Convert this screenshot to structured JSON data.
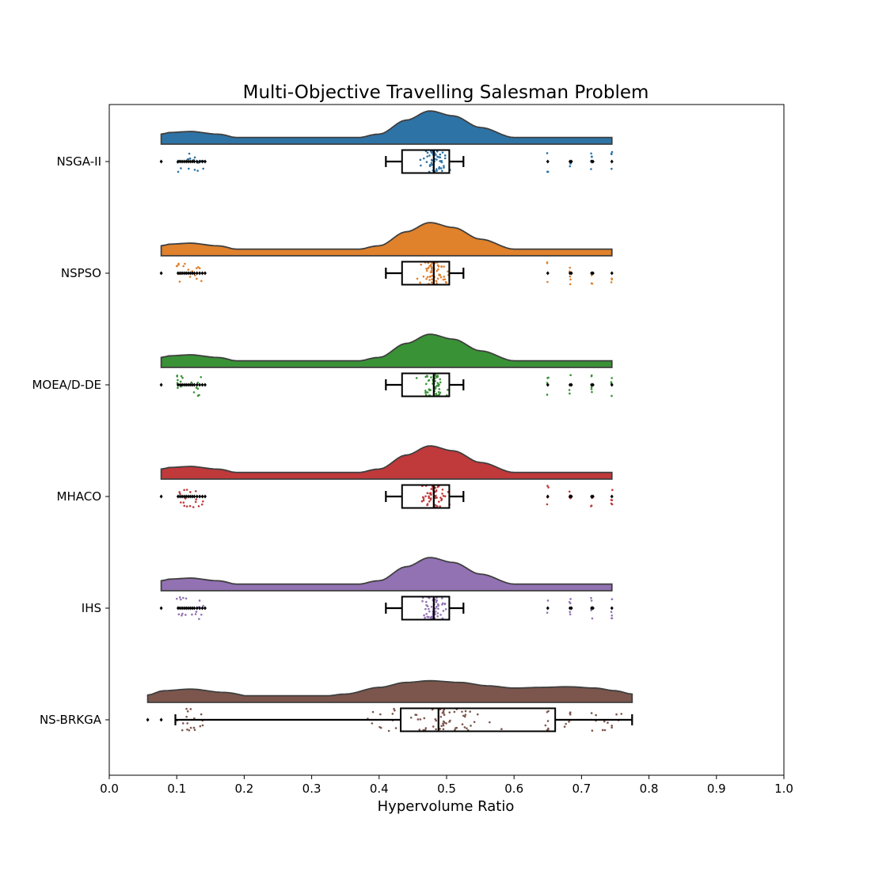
{
  "chart_data": {
    "type": "raincloud",
    "title": "Multi-Objective Travelling Salesman Problem",
    "xlabel": "Hypervolume Ratio",
    "ylabel": "",
    "xlim": [
      0.0,
      1.0
    ],
    "xticks": [
      "0.0",
      "0.1",
      "0.2",
      "0.3",
      "0.4",
      "0.5",
      "0.6",
      "0.7",
      "0.8",
      "0.9",
      "1.0"
    ],
    "grid": false,
    "series": [
      {
        "name": "NSGA-II",
        "color": "#2e73a6",
        "min": 0.077,
        "max": 0.745,
        "density": [
          [
            0.077,
            0.3
          ],
          [
            0.09,
            0.35
          ],
          [
            0.12,
            0.38
          ],
          [
            0.16,
            0.3
          ],
          [
            0.2,
            0.15
          ],
          [
            0.25,
            0.03
          ],
          [
            0.27,
            0.02
          ],
          [
            0.3,
            0.03
          ],
          [
            0.35,
            0.1
          ],
          [
            0.4,
            0.3
          ],
          [
            0.44,
            0.72
          ],
          [
            0.475,
            1.0
          ],
          [
            0.51,
            0.85
          ],
          [
            0.55,
            0.5
          ],
          [
            0.6,
            0.2
          ],
          [
            0.65,
            0.1
          ],
          [
            0.7,
            0.14
          ],
          [
            0.73,
            0.14
          ],
          [
            0.745,
            0.12
          ]
        ],
        "box": {
          "whisker_low": 0.41,
          "q1": 0.434,
          "median": 0.481,
          "q3": 0.504,
          "whisker_high": 0.525
        },
        "outliers": [
          0.077,
          0.102,
          0.105,
          0.108,
          0.111,
          0.114,
          0.117,
          0.12,
          0.123,
          0.126,
          0.13,
          0.134,
          0.138,
          0.142,
          0.65,
          0.683,
          0.685,
          0.715,
          0.717,
          0.745
        ]
      },
      {
        "name": "NSPSO",
        "color": "#e0812c",
        "min": 0.077,
        "max": 0.745,
        "density": [
          [
            0.077,
            0.3
          ],
          [
            0.09,
            0.35
          ],
          [
            0.12,
            0.38
          ],
          [
            0.16,
            0.3
          ],
          [
            0.2,
            0.15
          ],
          [
            0.25,
            0.03
          ],
          [
            0.27,
            0.02
          ],
          [
            0.3,
            0.03
          ],
          [
            0.35,
            0.1
          ],
          [
            0.4,
            0.3
          ],
          [
            0.44,
            0.72
          ],
          [
            0.475,
            1.0
          ],
          [
            0.51,
            0.85
          ],
          [
            0.55,
            0.5
          ],
          [
            0.6,
            0.2
          ],
          [
            0.65,
            0.1
          ],
          [
            0.7,
            0.14
          ],
          [
            0.73,
            0.14
          ],
          [
            0.745,
            0.12
          ]
        ],
        "box": {
          "whisker_low": 0.41,
          "q1": 0.434,
          "median": 0.481,
          "q3": 0.504,
          "whisker_high": 0.525
        },
        "outliers": [
          0.077,
          0.102,
          0.105,
          0.108,
          0.111,
          0.114,
          0.117,
          0.12,
          0.123,
          0.126,
          0.13,
          0.134,
          0.138,
          0.142,
          0.65,
          0.683,
          0.685,
          0.715,
          0.717,
          0.745
        ]
      },
      {
        "name": "MOEA/D-DE",
        "color": "#3a9236",
        "min": 0.077,
        "max": 0.745,
        "density": [
          [
            0.077,
            0.3
          ],
          [
            0.09,
            0.35
          ],
          [
            0.12,
            0.38
          ],
          [
            0.16,
            0.3
          ],
          [
            0.2,
            0.15
          ],
          [
            0.25,
            0.03
          ],
          [
            0.27,
            0.02
          ],
          [
            0.3,
            0.03
          ],
          [
            0.35,
            0.1
          ],
          [
            0.4,
            0.3
          ],
          [
            0.44,
            0.72
          ],
          [
            0.475,
            1.0
          ],
          [
            0.51,
            0.85
          ],
          [
            0.55,
            0.5
          ],
          [
            0.6,
            0.2
          ],
          [
            0.65,
            0.1
          ],
          [
            0.7,
            0.14
          ],
          [
            0.73,
            0.14
          ],
          [
            0.745,
            0.12
          ]
        ],
        "box": {
          "whisker_low": 0.41,
          "q1": 0.434,
          "median": 0.481,
          "q3": 0.504,
          "whisker_high": 0.525
        },
        "outliers": [
          0.077,
          0.102,
          0.105,
          0.108,
          0.111,
          0.114,
          0.117,
          0.12,
          0.123,
          0.126,
          0.13,
          0.134,
          0.138,
          0.142,
          0.65,
          0.683,
          0.685,
          0.715,
          0.717,
          0.745
        ]
      },
      {
        "name": "MHACO",
        "color": "#c0393b",
        "min": 0.077,
        "max": 0.745,
        "density": [
          [
            0.077,
            0.3
          ],
          [
            0.09,
            0.35
          ],
          [
            0.12,
            0.38
          ],
          [
            0.16,
            0.3
          ],
          [
            0.2,
            0.15
          ],
          [
            0.25,
            0.03
          ],
          [
            0.27,
            0.02
          ],
          [
            0.3,
            0.03
          ],
          [
            0.35,
            0.1
          ],
          [
            0.4,
            0.3
          ],
          [
            0.44,
            0.72
          ],
          [
            0.475,
            1.0
          ],
          [
            0.51,
            0.85
          ],
          [
            0.55,
            0.5
          ],
          [
            0.6,
            0.2
          ],
          [
            0.65,
            0.1
          ],
          [
            0.7,
            0.14
          ],
          [
            0.73,
            0.14
          ],
          [
            0.745,
            0.12
          ]
        ],
        "box": {
          "whisker_low": 0.41,
          "q1": 0.434,
          "median": 0.481,
          "q3": 0.504,
          "whisker_high": 0.525
        },
        "outliers": [
          0.077,
          0.102,
          0.105,
          0.108,
          0.111,
          0.114,
          0.117,
          0.12,
          0.123,
          0.126,
          0.13,
          0.134,
          0.138,
          0.142,
          0.65,
          0.683,
          0.685,
          0.715,
          0.717,
          0.745
        ]
      },
      {
        "name": "IHS",
        "color": "#9272b3",
        "min": 0.077,
        "max": 0.745,
        "density": [
          [
            0.077,
            0.3
          ],
          [
            0.09,
            0.35
          ],
          [
            0.12,
            0.38
          ],
          [
            0.16,
            0.3
          ],
          [
            0.2,
            0.15
          ],
          [
            0.25,
            0.03
          ],
          [
            0.27,
            0.02
          ],
          [
            0.3,
            0.03
          ],
          [
            0.35,
            0.1
          ],
          [
            0.4,
            0.3
          ],
          [
            0.44,
            0.72
          ],
          [
            0.475,
            1.0
          ],
          [
            0.51,
            0.85
          ],
          [
            0.55,
            0.5
          ],
          [
            0.6,
            0.2
          ],
          [
            0.65,
            0.1
          ],
          [
            0.7,
            0.14
          ],
          [
            0.73,
            0.14
          ],
          [
            0.745,
            0.12
          ]
        ],
        "box": {
          "whisker_low": 0.41,
          "q1": 0.434,
          "median": 0.481,
          "q3": 0.504,
          "whisker_high": 0.525
        },
        "outliers": [
          0.077,
          0.102,
          0.105,
          0.108,
          0.111,
          0.114,
          0.117,
          0.12,
          0.123,
          0.126,
          0.13,
          0.134,
          0.138,
          0.142,
          0.65,
          0.683,
          0.685,
          0.715,
          0.717,
          0.745
        ]
      },
      {
        "name": "NS-BRKGA",
        "color": "#7c564d",
        "min": 0.057,
        "max": 0.775,
        "density": [
          [
            0.057,
            0.22
          ],
          [
            0.08,
            0.35
          ],
          [
            0.12,
            0.4
          ],
          [
            0.17,
            0.3
          ],
          [
            0.22,
            0.15
          ],
          [
            0.26,
            0.08
          ],
          [
            0.3,
            0.12
          ],
          [
            0.35,
            0.25
          ],
          [
            0.4,
            0.45
          ],
          [
            0.44,
            0.6
          ],
          [
            0.475,
            0.65
          ],
          [
            0.52,
            0.6
          ],
          [
            0.56,
            0.5
          ],
          [
            0.6,
            0.43
          ],
          [
            0.64,
            0.45
          ],
          [
            0.68,
            0.47
          ],
          [
            0.72,
            0.43
          ],
          [
            0.75,
            0.35
          ],
          [
            0.775,
            0.25
          ]
        ],
        "box": {
          "whisker_low": 0.098,
          "q1": 0.432,
          "median": 0.488,
          "q3": 0.661,
          "whisker_high": 0.775
        },
        "outliers": [
          0.057,
          0.077
        ]
      }
    ]
  }
}
